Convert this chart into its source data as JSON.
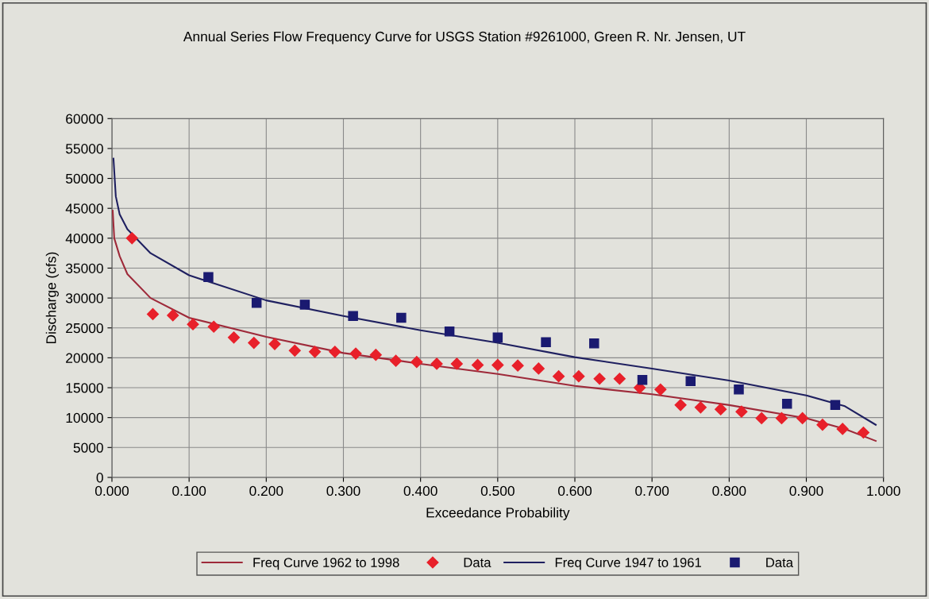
{
  "chart_data": {
    "type": "line",
    "title": "Annual Series Flow Frequency Curve for USGS Station #9261000, Green R. Nr. Jensen, UT",
    "xlabel": "Exceedance Probability",
    "ylabel": "Discharge (cfs)",
    "xlim": [
      0,
      1
    ],
    "ylim": [
      0,
      60000
    ],
    "xticks": [
      {
        "value": 0,
        "label": "0.000"
      },
      {
        "value": 0.1,
        "label": "0.100"
      },
      {
        "value": 0.2,
        "label": "0.200"
      },
      {
        "value": 0.3,
        "label": "0.300"
      },
      {
        "value": 0.4,
        "label": "0.400"
      },
      {
        "value": 0.5,
        "label": "0.500"
      },
      {
        "value": 0.6,
        "label": "0.600"
      },
      {
        "value": 0.7,
        "label": "0.700"
      },
      {
        "value": 0.8,
        "label": "0.800"
      },
      {
        "value": 0.9,
        "label": "0.900"
      },
      {
        "value": 1,
        "label": "1.000"
      }
    ],
    "yticks": [
      0,
      5000,
      10000,
      15000,
      20000,
      25000,
      30000,
      35000,
      40000,
      45000,
      50000,
      55000,
      60000
    ],
    "grid": true,
    "legend": "bottom",
    "series": [
      {
        "name": "Freq Curve 1962 to 1998",
        "color": "#9e2a3a",
        "marker": "none",
        "x": [
          0.001,
          0.003,
          0.01,
          0.02,
          0.05,
          0.1,
          0.2,
          0.3,
          0.4,
          0.5,
          0.6,
          0.7,
          0.8,
          0.9,
          0.95,
          0.99
        ],
        "values": [
          44600,
          40000,
          37000,
          34000,
          30000,
          26700,
          23500,
          20800,
          19000,
          17300,
          15300,
          13900,
          12100,
          9900,
          8100,
          6100
        ]
      },
      {
        "name": "Data",
        "type": "scatter",
        "color": "#e8202a",
        "marker": "diamond",
        "x": [
          0.026,
          0.053,
          0.079,
          0.105,
          0.132,
          0.158,
          0.184,
          0.211,
          0.237,
          0.263,
          0.289,
          0.316,
          0.342,
          0.368,
          0.395,
          0.421,
          0.447,
          0.474,
          0.5,
          0.526,
          0.553,
          0.579,
          0.605,
          0.632,
          0.658,
          0.684,
          0.711,
          0.737,
          0.763,
          0.789,
          0.816,
          0.842,
          0.868,
          0.895,
          0.921,
          0.947,
          0.974
        ],
        "values": [
          40000,
          27300,
          27100,
          25600,
          25200,
          23400,
          22500,
          22300,
          21200,
          21000,
          21000,
          20700,
          20500,
          19500,
          19300,
          19000,
          19000,
          18800,
          18800,
          18700,
          18200,
          16900,
          16900,
          16500,
          16500,
          15000,
          14700,
          12100,
          11700,
          11400,
          11000,
          9900,
          9900,
          9900,
          8800,
          8100,
          7500
        ]
      },
      {
        "name": "Freq Curve 1947 to 1961",
        "color": "#1f2060",
        "marker": "none",
        "x": [
          0.002,
          0.005,
          0.01,
          0.02,
          0.05,
          0.1,
          0.2,
          0.3,
          0.4,
          0.5,
          0.6,
          0.7,
          0.8,
          0.9,
          0.95,
          0.99
        ],
        "values": [
          53300,
          47000,
          44000,
          41500,
          37500,
          33800,
          29600,
          27000,
          24600,
          22500,
          20100,
          18200,
          16200,
          13700,
          11900,
          8800
        ]
      },
      {
        "name": "Data",
        "type": "scatter",
        "color": "#1a1a70",
        "marker": "square",
        "x": [
          0.125,
          0.1875,
          0.25,
          0.3125,
          0.375,
          0.4375,
          0.5,
          0.5625,
          0.625,
          0.6875,
          0.75,
          0.8125,
          0.875,
          0.9375
        ],
        "values": [
          33500,
          29200,
          28900,
          27000,
          26700,
          24400,
          23400,
          22600,
          22400,
          16300,
          16100,
          14700,
          12300,
          12100
        ]
      }
    ]
  }
}
